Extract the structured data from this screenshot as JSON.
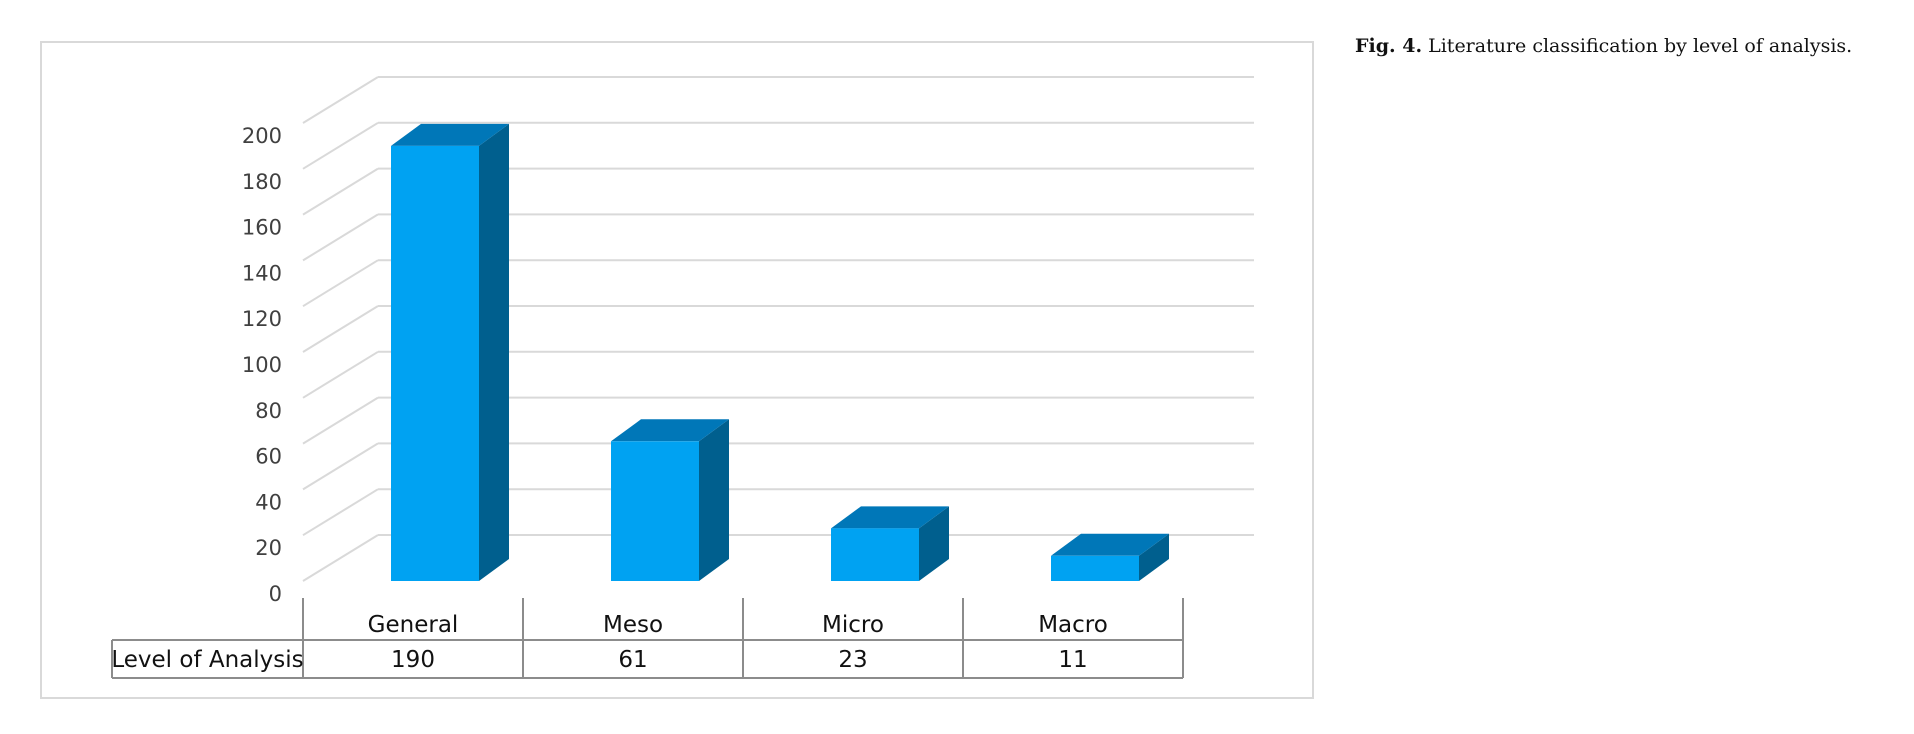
{
  "caption": {
    "label": "Fig. 4.",
    "text": "Literature classification by level of analysis."
  },
  "colors": {
    "bar_front": "#00A2F2",
    "bar_top": "#0077B8",
    "bar_side": "#005F8E",
    "grid": "#D9D9D9",
    "table_border": "#8C8C8C"
  },
  "chart_data": {
    "type": "bar",
    "categories": [
      "General",
      "Meso",
      "Micro",
      "Macro"
    ],
    "series": [
      {
        "name": "Level of Analysis",
        "values": [
          190,
          61,
          23,
          11
        ]
      }
    ],
    "ylim": [
      0,
      200
    ],
    "y_ticks": [
      0,
      20,
      40,
      60,
      80,
      100,
      120,
      140,
      160,
      180,
      200
    ],
    "grid": true,
    "three_d": true,
    "data_table": true
  }
}
